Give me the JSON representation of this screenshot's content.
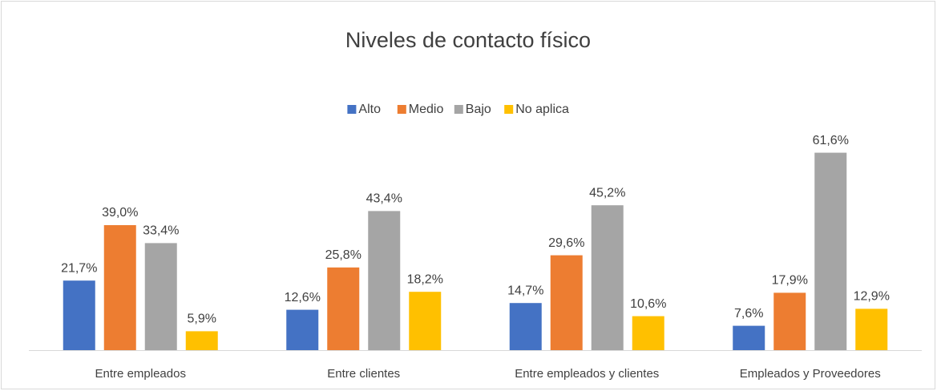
{
  "chart_data": {
    "type": "bar",
    "title": "Niveles de contacto físico",
    "categories": [
      "Entre empleados",
      "Entre clientes",
      "Entre empleados y clientes",
      "Empleados y Proveedores"
    ],
    "series": [
      {
        "name": "Alto",
        "color": "#4472c4",
        "values": [
          21.7,
          12.6,
          14.7,
          7.6
        ],
        "value_labels": [
          "21,7%",
          "12,6%",
          "14,7%",
          "7,6%"
        ]
      },
      {
        "name": "Medio",
        "color": "#ed7d31",
        "values": [
          39.0,
          25.8,
          29.6,
          17.9
        ],
        "value_labels": [
          "39,0%",
          "25,8%",
          "29,6%",
          "17,9%"
        ]
      },
      {
        "name": "Bajo",
        "color": "#a5a5a5",
        "values": [
          33.4,
          43.4,
          45.2,
          61.6
        ],
        "value_labels": [
          "33,4%",
          "43,4%",
          "45,2%",
          "61,6%"
        ]
      },
      {
        "name": "No aplica",
        "color": "#ffc000",
        "values": [
          5.9,
          18.2,
          10.6,
          12.9
        ],
        "value_labels": [
          "5,9%",
          "18,2%",
          "10,6%",
          "12,9%"
        ]
      }
    ],
    "ylim": [
      0,
      70
    ],
    "legend": "top"
  }
}
